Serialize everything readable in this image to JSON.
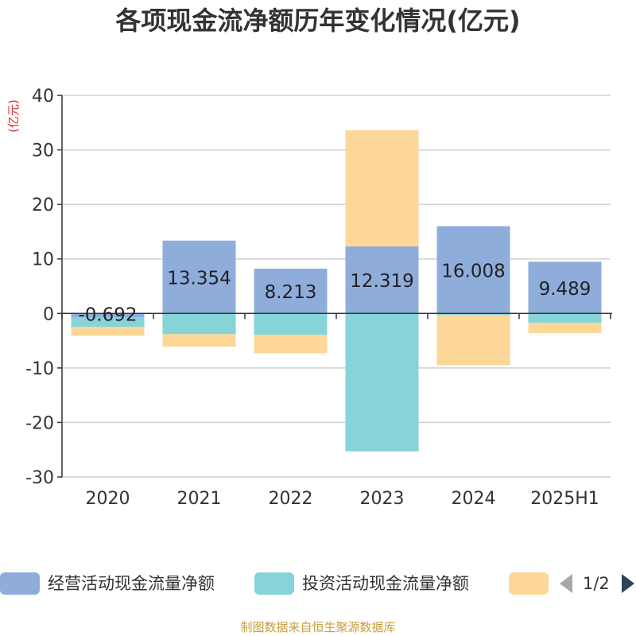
{
  "title": "各项现金流净额历年变化情况(亿元)",
  "source": "制图数据来自恒生聚源数据库",
  "legend": {
    "items": [
      {
        "label": "经营活动现金流量净额",
        "color": "#8eaddb"
      },
      {
        "label": "投资活动现金流量净额",
        "color": "#86d4d7"
      },
      {
        "label": "",
        "color": "#fdd797"
      }
    ],
    "pager": "1/2"
  },
  "chart_data": {
    "type": "bar",
    "stacked": true,
    "categories": [
      "2020",
      "2021",
      "2022",
      "2023",
      "2024",
      "2025H1"
    ],
    "ylabel": "(亿元)",
    "ylim": [
      -30,
      40
    ],
    "yticks": [
      -30,
      -20,
      -10,
      0,
      10,
      20,
      30,
      40
    ],
    "grid": true,
    "legend_position": "bottom",
    "series": [
      {
        "name": "经营活动现金流量净额",
        "color": "#8eaddb",
        "values": [
          -0.692,
          13.354,
          8.213,
          12.319,
          16.008,
          9.489
        ],
        "labels": true
      },
      {
        "name": "投资活动现金流量净额",
        "color": "#86d4d7",
        "values": [
          -1.8,
          -3.8,
          -3.9,
          -25.3,
          -0.3,
          -1.7
        ]
      },
      {
        "color": "#fdd797",
        "values": [
          -1.6,
          -2.3,
          -3.4,
          21.3,
          -9.2,
          -1.9
        ]
      }
    ]
  }
}
